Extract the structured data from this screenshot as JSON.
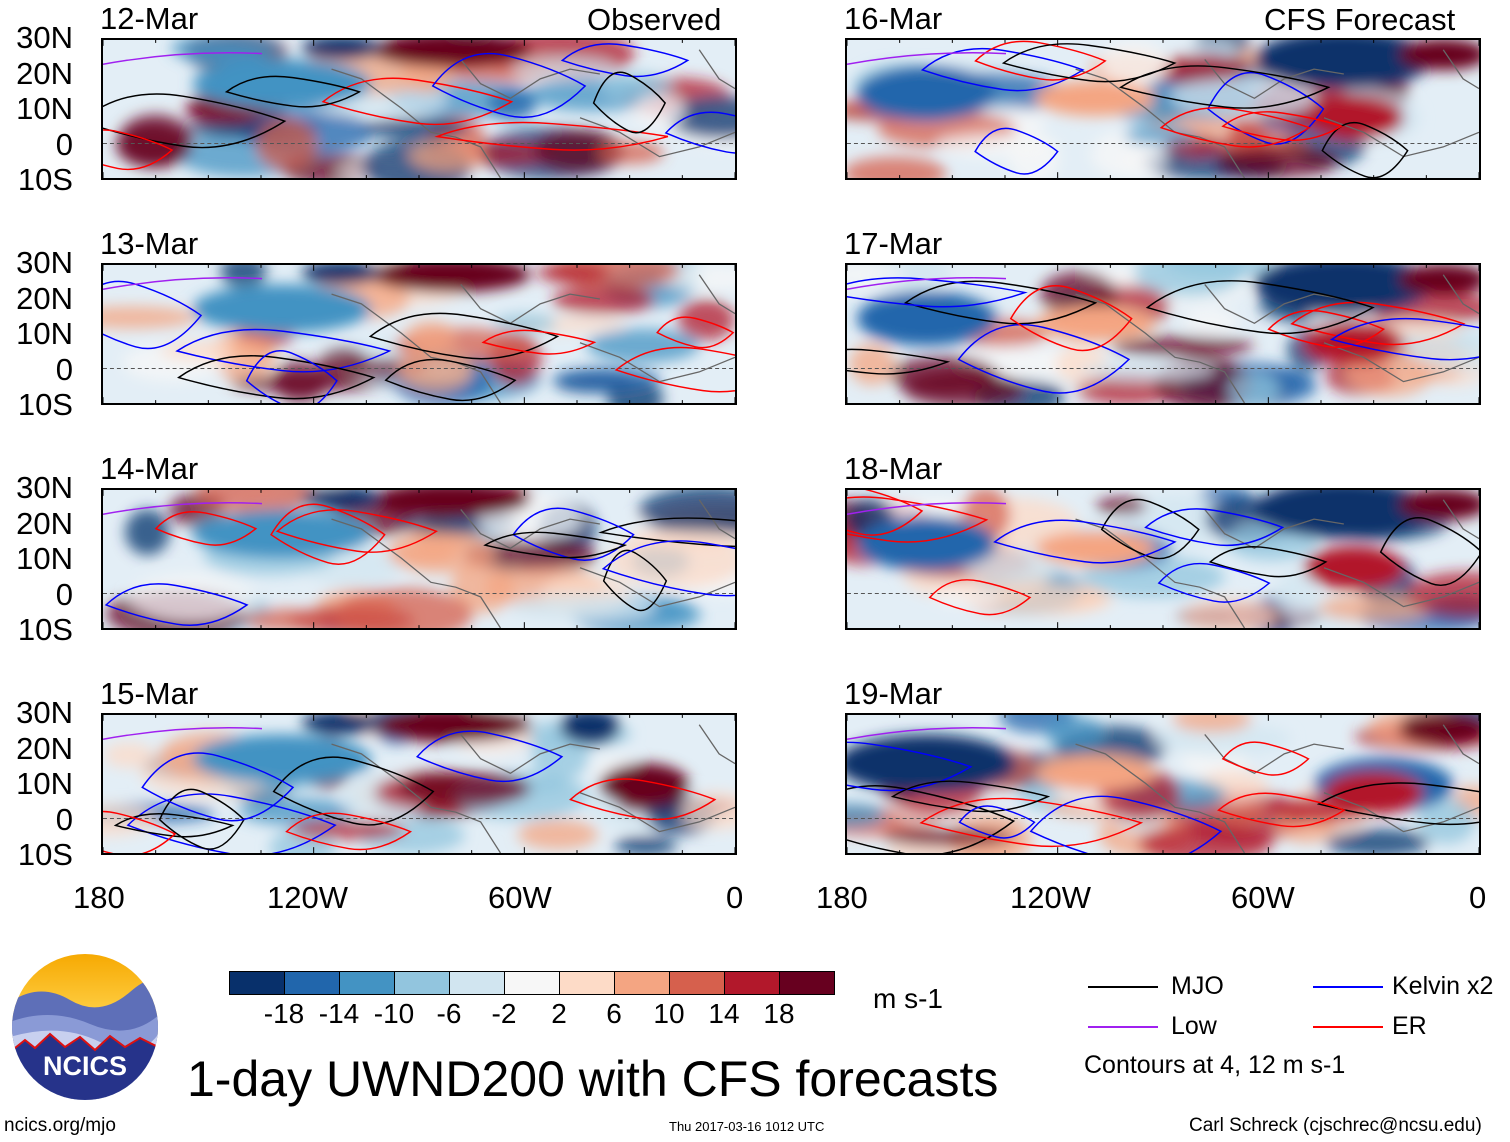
{
  "title": "1-day UWND200 with CFS forecasts",
  "left_header": "Observed",
  "right_header": "CFS Forecast",
  "panels": [
    {
      "date": "12-Mar",
      "type": "observed"
    },
    {
      "date": "13-Mar",
      "type": "observed"
    },
    {
      "date": "14-Mar",
      "type": "observed"
    },
    {
      "date": "15-Mar",
      "type": "observed"
    },
    {
      "date": "16-Mar",
      "type": "forecast"
    },
    {
      "date": "17-Mar",
      "type": "forecast"
    },
    {
      "date": "18-Mar",
      "type": "forecast"
    },
    {
      "date": "19-Mar",
      "type": "forecast"
    }
  ],
  "lat_labels": [
    "30N",
    "20N",
    "10N",
    "0",
    "10S"
  ],
  "lon_labels": [
    "180",
    "120W",
    "60W",
    "0"
  ],
  "colorbar": {
    "colors": [
      "#08306b",
      "#2166ac",
      "#4393c3",
      "#92c5de",
      "#d1e5f0",
      "#f7f7f7",
      "#fddbc7",
      "#f4a582",
      "#d6604d",
      "#b2182b",
      "#67001f"
    ],
    "labels": [
      "-18",
      "-14",
      "-10",
      "-6",
      "-2",
      "2",
      "6",
      "10",
      "14",
      "18"
    ],
    "units": "m s-1"
  },
  "legend": {
    "items": [
      {
        "label": "MJO",
        "color": "#000000"
      },
      {
        "label": "Kelvin x2",
        "color": "#0000ff"
      },
      {
        "label": "Low",
        "color": "#a020f0"
      },
      {
        "label": "ER",
        "color": "#ff0000"
      }
    ],
    "note": "Contours at 4, 12 m s-1"
  },
  "logo_text": "NCICS",
  "footer": {
    "url": "ncics.org/mjo",
    "timestamp": "Thu 2017-03-16 1012 UTC",
    "credit": "Carl Schreck (cjschrec@ncsu.edu)"
  }
}
